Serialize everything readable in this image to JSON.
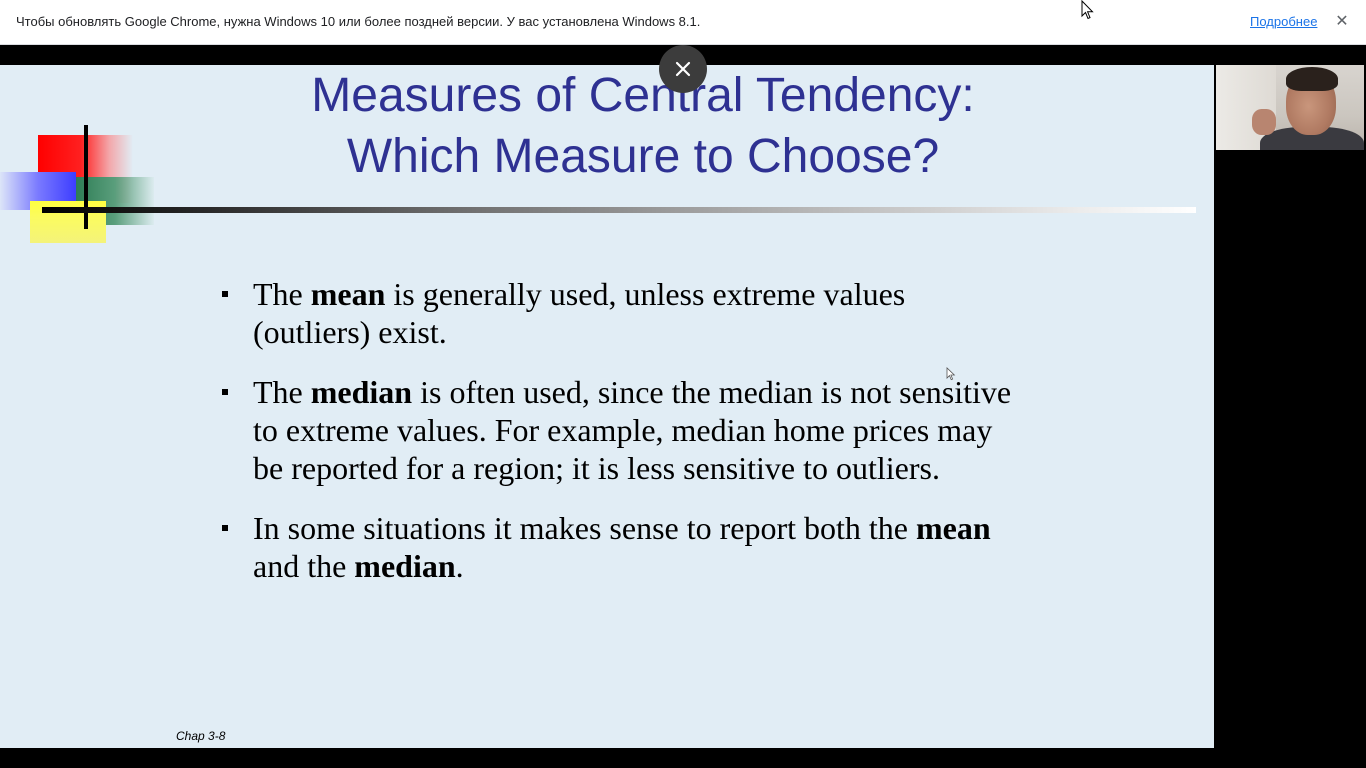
{
  "infobar": {
    "message": "Чтобы обновлять Google Chrome, нужна Windows 10 или более поздней версии. У вас установлена Windows 8.1.",
    "link_label": "Подробнее",
    "close_icon": "close-icon"
  },
  "slide": {
    "title_line1": "Measures of Central Tendency:",
    "title_line2": "Which Measure to Choose?",
    "bullets": [
      {
        "pre": "The ",
        "bold": "mean",
        "post": " is generally used, unless extreme values (outliers) exist."
      },
      {
        "pre": "The ",
        "bold": "median",
        "post": " is often used, since the median is not sensitive to extreme values.  For example, median home prices may be reported for a region; it is less sensitive to outliers."
      },
      {
        "pre": "In some situations it makes sense to report both the ",
        "bold": "mean",
        "mid": " and the ",
        "bold2": "median",
        "post": "."
      }
    ],
    "footer": "Chap 3-8"
  },
  "colors": {
    "title": "#2e3192",
    "slide_background": "#e1edf5",
    "link": "#1a73e8"
  }
}
